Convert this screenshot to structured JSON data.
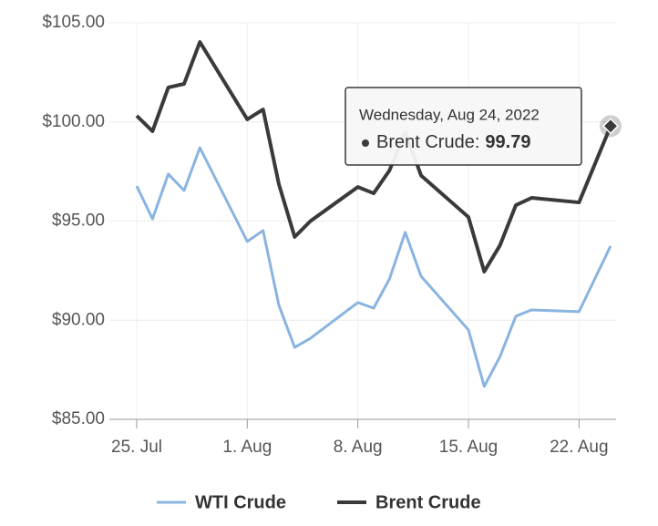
{
  "chart_data": {
    "type": "line",
    "x": [
      "2022-07-25",
      "2022-07-26",
      "2022-07-27",
      "2022-07-28",
      "2022-07-29",
      "2022-08-01",
      "2022-08-02",
      "2022-08-03",
      "2022-08-04",
      "2022-08-05",
      "2022-08-08",
      "2022-08-09",
      "2022-08-10",
      "2022-08-11",
      "2022-08-12",
      "2022-08-15",
      "2022-08-16",
      "2022-08-17",
      "2022-08-18",
      "2022-08-19",
      "2022-08-22",
      "2022-08-24"
    ],
    "series": [
      {
        "name": "WTI Crude",
        "color": "#8ab4e0",
        "values": [
          96.77,
          95.11,
          97.37,
          96.54,
          98.7,
          93.97,
          94.52,
          90.75,
          88.63,
          89.09,
          90.89,
          90.61,
          92.08,
          94.43,
          92.22,
          89.51,
          86.66,
          88.17,
          90.2,
          90.52,
          90.43,
          93.74
        ]
      },
      {
        "name": "Brent Crude",
        "color": "#3a3a3a",
        "values": [
          100.31,
          99.53,
          101.74,
          101.92,
          104.03,
          100.13,
          100.63,
          96.86,
          94.2,
          95.0,
          96.72,
          96.4,
          97.55,
          99.5,
          97.3,
          95.2,
          92.45,
          93.78,
          95.8,
          96.17,
          95.94,
          99.79
        ]
      }
    ],
    "xlim": [
      "2022-07-25",
      "2022-08-24"
    ],
    "xticks": [
      {
        "value": "2022-07-25",
        "label": "25. Jul"
      },
      {
        "value": "2022-08-01",
        "label": "1. Aug"
      },
      {
        "value": "2022-08-08",
        "label": "8. Aug"
      },
      {
        "value": "2022-08-15",
        "label": "15. Aug"
      },
      {
        "value": "2022-08-22",
        "label": "22. Aug"
      }
    ],
    "ylim": [
      85,
      105
    ],
    "yticks": [
      {
        "value": 85,
        "label": "$85.00"
      },
      {
        "value": 90,
        "label": "$90.00"
      },
      {
        "value": 95,
        "label": "$95.00"
      },
      {
        "value": 100,
        "label": "$100.00"
      },
      {
        "value": 105,
        "label": "$105.00"
      }
    ],
    "grid": true,
    "legend": "bottom",
    "tooltip": {
      "header": "Wednesday, Aug 24, 2022",
      "label": "Brent Crude:"
    }
  }
}
